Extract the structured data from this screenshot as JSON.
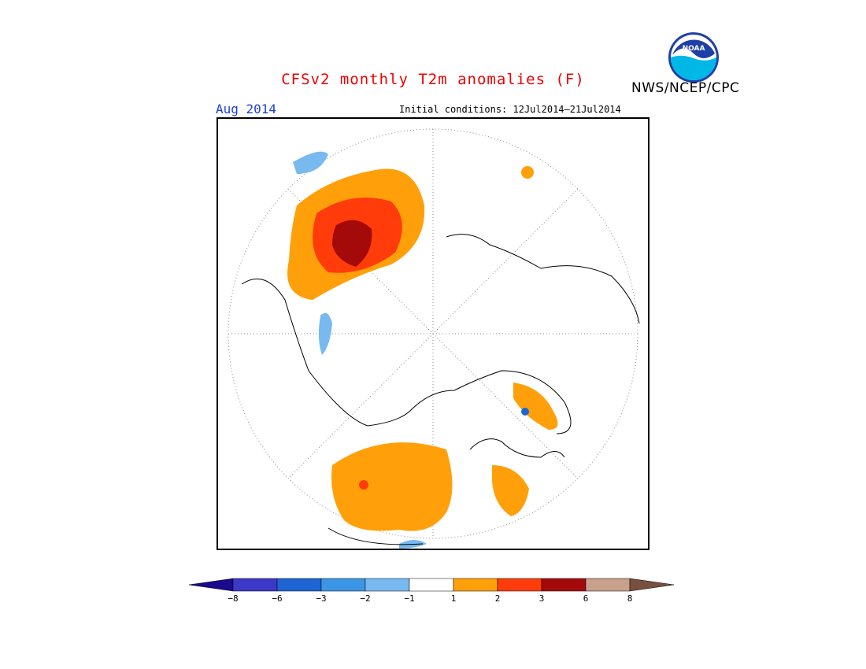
{
  "title": "CFSv2 monthly T2m anomalies (F)",
  "organization": "NWS/NCEP/CPC",
  "logo_text": "NOAA",
  "valid_month": "Aug 2014",
  "initial_conditions": "Initial conditions: 12Jul2014–21Jul2014",
  "colorbar": {
    "labels": [
      "−8",
      "−6",
      "−3",
      "−2",
      "−1",
      "1",
      "2",
      "3",
      "6",
      "8"
    ],
    "colors": [
      "#1a0a8c",
      "#3c38c8",
      "#1e64d2",
      "#3c96e6",
      "#78b9f0",
      "#ffffff",
      "#ffa00a",
      "#ff3c0a",
      "#a50a0a",
      "#c8a08c",
      "#785040"
    ]
  },
  "map": {
    "projection": "north-polar-stereographic",
    "anomaly_regions": [
      "Eurasia warm anomaly",
      "North America warm anomaly",
      "Greenland warm anomaly",
      "Scandinavia cool anomaly"
    ]
  }
}
